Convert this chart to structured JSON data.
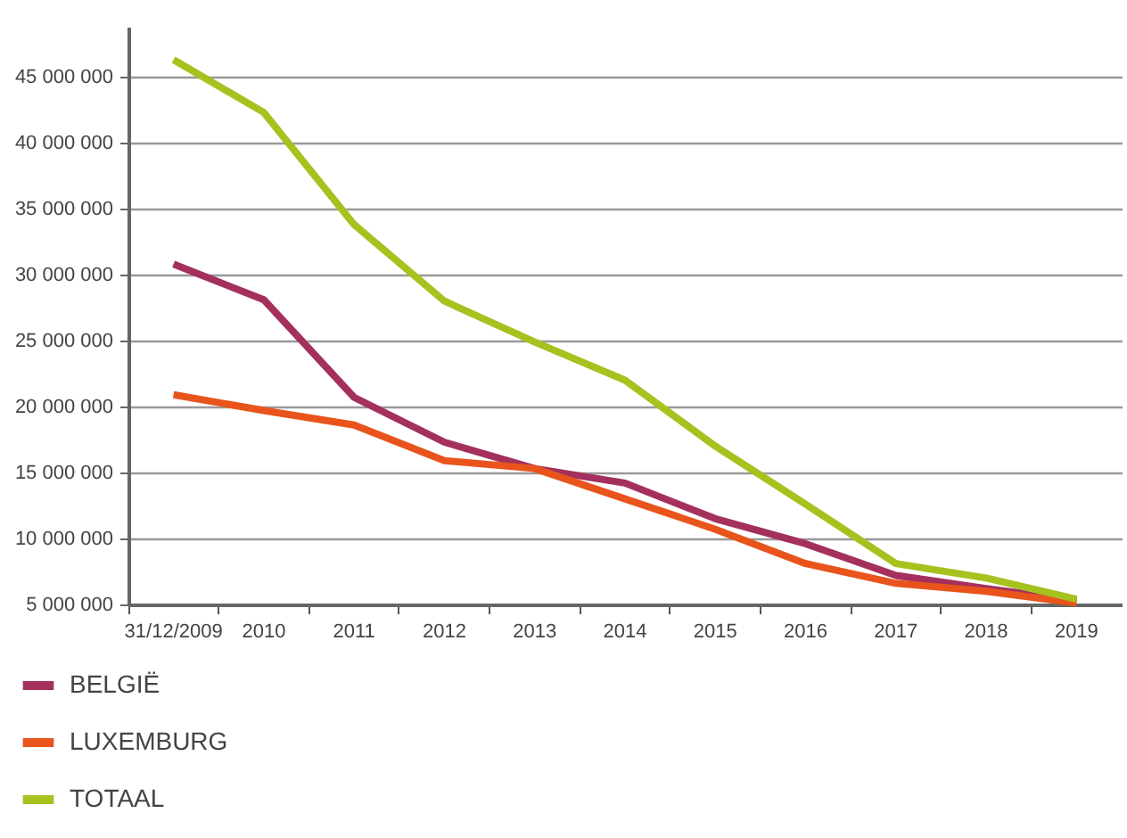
{
  "chart_data": {
    "type": "line",
    "categories": [
      "31/12/2009",
      "2010",
      "2011",
      "2012",
      "2013",
      "2014",
      "2015",
      "2016",
      "2017",
      "2018",
      "2019"
    ],
    "series": [
      {
        "name": "BELGIË",
        "color": "#a4305e",
        "values": [
          30800000,
          28100000,
          20700000,
          17300000,
          15300000,
          14200000,
          11500000,
          9600000,
          7200000,
          6200000,
          5300000
        ]
      },
      {
        "name": "LUXEMBURG",
        "color": "#e8541c",
        "values": [
          20900000,
          19700000,
          18600000,
          15900000,
          15300000,
          13000000,
          10700000,
          8100000,
          6600000,
          6000000,
          5100000
        ]
      },
      {
        "name": "TOTAAL",
        "color": "#a5c21f",
        "values": [
          46300000,
          42300000,
          33800000,
          28000000,
          24900000,
          22000000,
          17000000,
          12600000,
          8100000,
          7000000,
          5400000
        ]
      }
    ],
    "ylim": [
      5000000,
      48800000
    ],
    "yticks": [
      {
        "value": 5000000,
        "label": "5 000 000"
      },
      {
        "value": 10000000,
        "label": "10 000 000"
      },
      {
        "value": 15000000,
        "label": "15 000 000"
      },
      {
        "value": 20000000,
        "label": "20 000 000"
      },
      {
        "value": 25000000,
        "label": "25 000 000"
      },
      {
        "value": 30000000,
        "label": "30 000 000"
      },
      {
        "value": 35000000,
        "label": "35 000 000"
      },
      {
        "value": 40000000,
        "label": "40 000 000"
      },
      {
        "value": 45000000,
        "label": "45 000 000"
      }
    ],
    "grid": "y",
    "legend": "bottom",
    "marker": "none",
    "line_style": "solid"
  }
}
